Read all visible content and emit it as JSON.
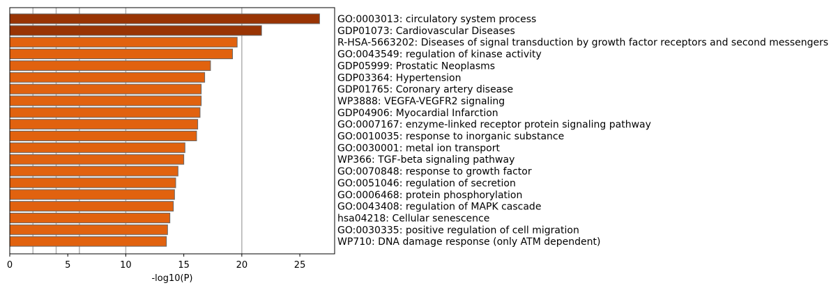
{
  "chart_data": {
    "type": "bar",
    "orientation": "horizontal",
    "xlabel": "-log10(P)",
    "xlim": [
      0,
      28
    ],
    "xticks": [
      0,
      5,
      10,
      15,
      20,
      25
    ],
    "gridlines_x": [
      2,
      4,
      6,
      10,
      20
    ],
    "grid": true,
    "categories": [
      "GO:0003013: circulatory system process",
      "GDP01073: Cardiovascular Diseases",
      "R-HSA-5663202: Diseases of signal transduction by growth factor receptors and second messengers",
      "GO:0043549: regulation of kinase activity",
      "GDP05999: Prostatic Neoplasms",
      "GDP03364: Hypertension",
      "GDP01765: Coronary artery disease",
      "WP3888: VEGFA-VEGFR2 signaling",
      "GDP04906: Myocardial Infarction",
      "GO:0007167: enzyme-linked receptor protein signaling pathway",
      "GO:0010035: response to inorganic substance",
      "GO:0030001: metal ion transport",
      "WP366: TGF-beta signaling pathway",
      "GO:0070848: response to growth factor",
      "GO:0051046: regulation of secretion",
      "GO:0006468: protein phosphorylation",
      "GO:0043408: regulation of MAPK cascade",
      "hsa04218: Cellular senescence",
      "GO:0030335: positive regulation of cell migration",
      "WP710: DNA damage response (only ATM dependent)"
    ],
    "values": [
      26.7,
      21.7,
      19.6,
      19.2,
      17.3,
      16.8,
      16.5,
      16.5,
      16.4,
      16.2,
      16.1,
      15.1,
      15.0,
      14.5,
      14.3,
      14.2,
      14.1,
      13.8,
      13.6,
      13.5
    ],
    "colors": {
      "bar_dark": "#993404",
      "bar_main": "#e1620f",
      "bar_edge": "#666666",
      "grid": "#b0b0b0"
    },
    "dark_bar_count": 2
  }
}
